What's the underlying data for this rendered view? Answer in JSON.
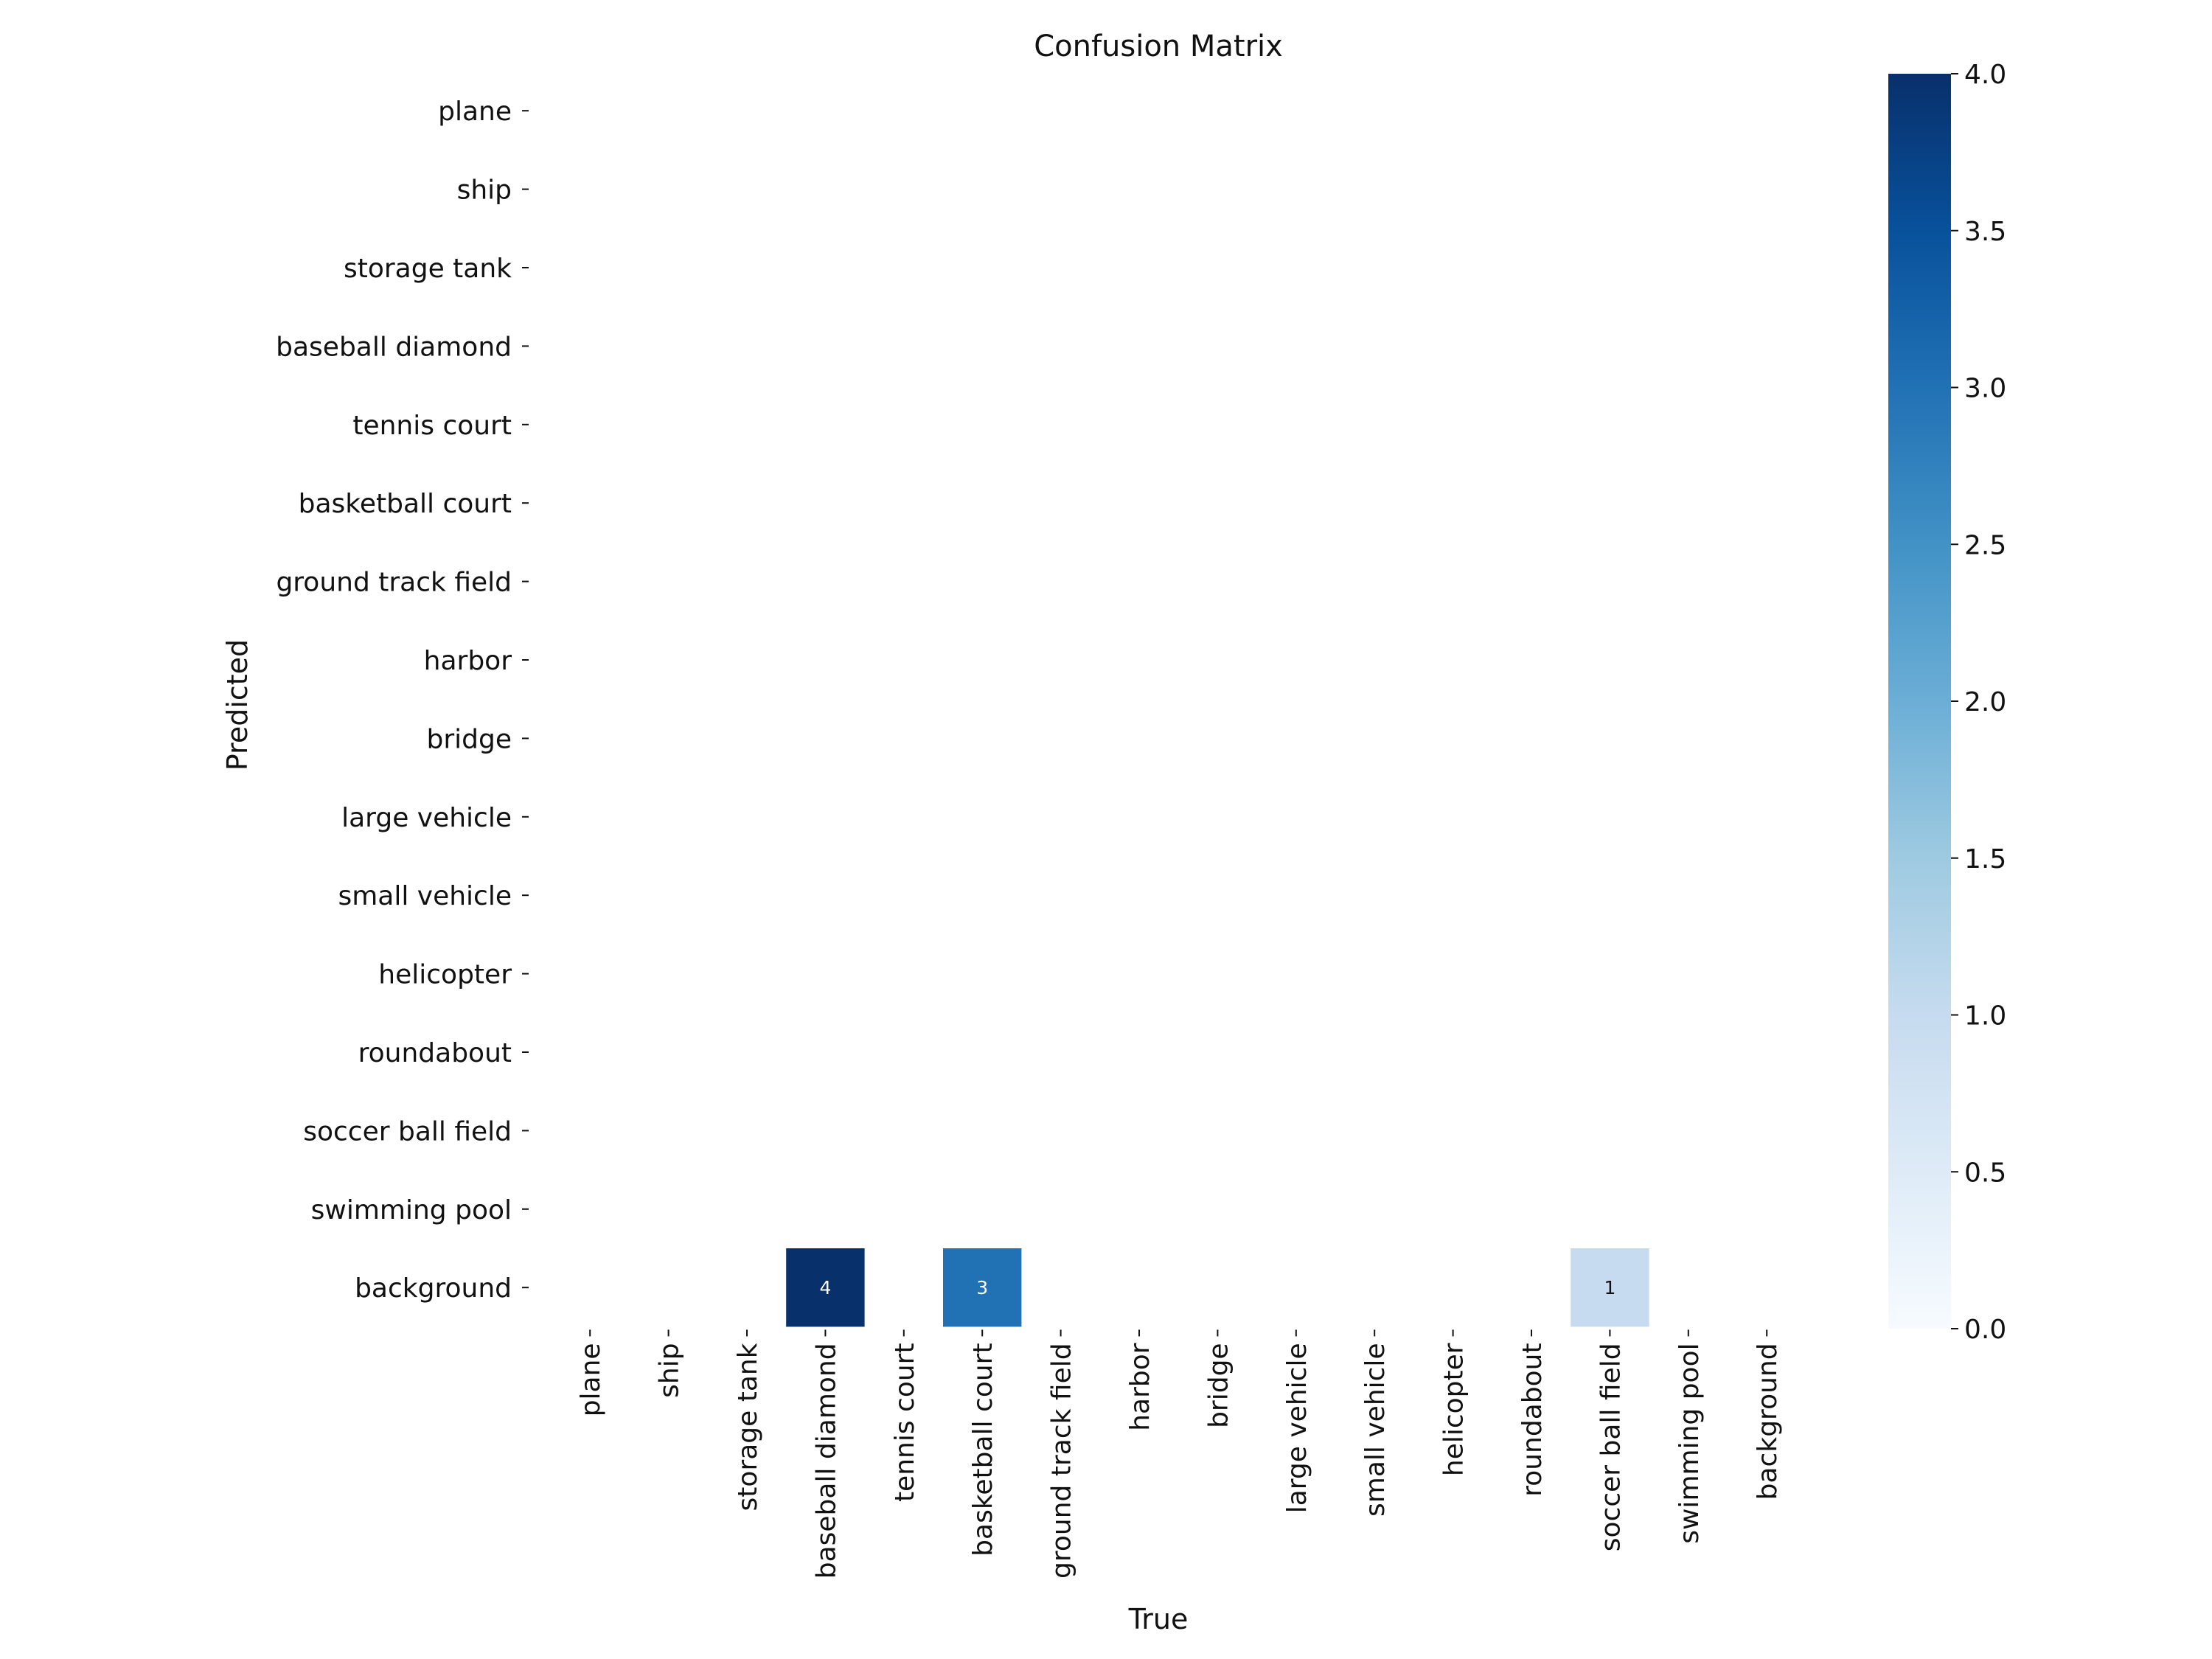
{
  "chart_data": {
    "type": "heatmap",
    "title": "Confusion Matrix",
    "xlabel": "True",
    "ylabel": "Predicted",
    "x_categories": [
      "plane",
      "ship",
      "storage tank",
      "baseball diamond",
      "tennis court",
      "basketball court",
      "ground track field",
      "harbor",
      "bridge",
      "large vehicle",
      "small vehicle",
      "helicopter",
      "roundabout",
      "soccer ball field",
      "swimming pool",
      "background"
    ],
    "y_categories": [
      "plane",
      "ship",
      "storage tank",
      "baseball diamond",
      "tennis court",
      "basketball court",
      "ground track field",
      "harbor",
      "bridge",
      "large vehicle",
      "small vehicle",
      "helicopter",
      "roundabout",
      "soccer ball field",
      "swimming pool",
      "background"
    ],
    "nonzero_cells": [
      {
        "predicted": "background",
        "true": "baseball diamond",
        "value": 4
      },
      {
        "predicted": "background",
        "true": "basketball court",
        "value": 3
      },
      {
        "predicted": "background",
        "true": "soccer ball field",
        "value": 1
      }
    ],
    "zero_cells_shown": false,
    "colormap": "Blues",
    "colorbar": {
      "range": [
        0.0,
        4.0
      ],
      "ticks": [
        "0.0",
        "0.5",
        "1.0",
        "1.5",
        "2.0",
        "2.5",
        "3.0",
        "3.5",
        "4.0"
      ],
      "placement": "right"
    },
    "colors": {
      "low": "#f7fbff",
      "high": "#08306b",
      "text_dark": "#111111",
      "text_light": "#ffffff"
    }
  }
}
